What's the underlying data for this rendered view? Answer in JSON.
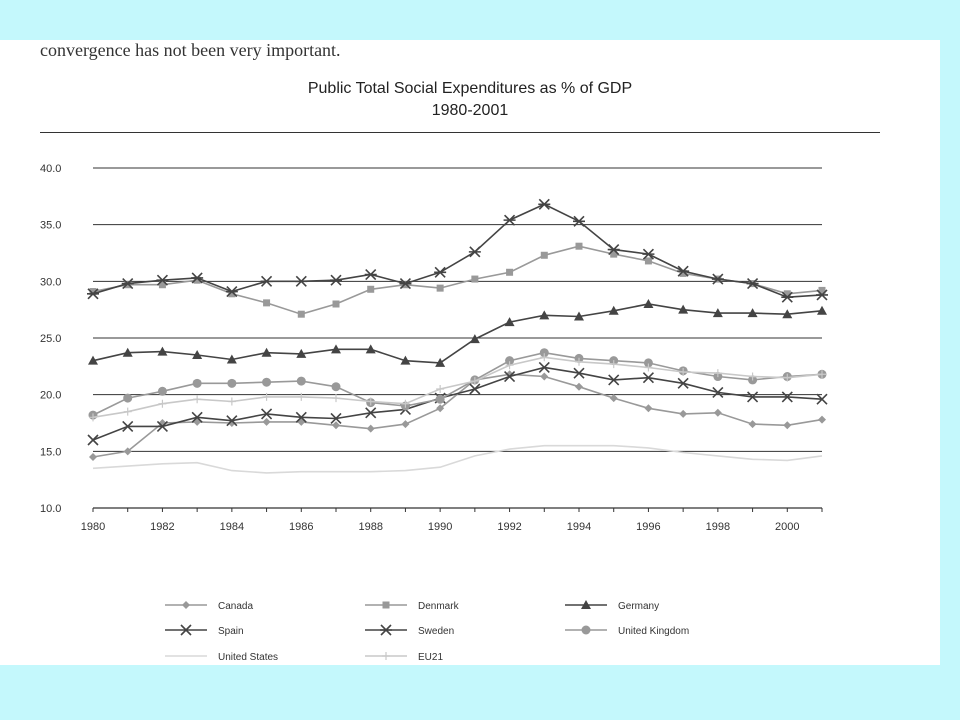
{
  "slide": {
    "caption": "convergence has not been very important.",
    "title_line1": "Public Total Social Expenditures as % of GDP",
    "title_line2": "1980-2001"
  },
  "chart_data": {
    "type": "line",
    "title": "Public Total Social Expenditures as % of GDP 1980-2001",
    "xlabel": "",
    "ylabel": "",
    "x": [
      1980,
      1981,
      1982,
      1983,
      1984,
      1985,
      1986,
      1987,
      1988,
      1989,
      1990,
      1991,
      1992,
      1993,
      1994,
      1995,
      1996,
      1997,
      1998,
      1999,
      2000,
      2001
    ],
    "xticks": [
      "1980",
      "1982",
      "1984",
      "1986",
      "1988",
      "1990",
      "1992",
      "1994",
      "1996",
      "1998",
      "2000"
    ],
    "yticks": [
      "10.0",
      "15.0",
      "20.0",
      "25.0",
      "30.0",
      "35.0",
      "40.0"
    ],
    "ylim": [
      10,
      40
    ],
    "grid": "horizontal",
    "legend_position": "bottom",
    "series": [
      {
        "name": "Canada",
        "color": "#999999",
        "marker": "diamond",
        "values": [
          14.5,
          15.0,
          17.5,
          17.6,
          17.5,
          17.6,
          17.6,
          17.3,
          17.0,
          17.4,
          18.8,
          21.3,
          21.8,
          21.6,
          20.7,
          19.7,
          18.8,
          18.3,
          18.4,
          17.4,
          17.3,
          17.8
        ]
      },
      {
        "name": "Denmark",
        "color": "#999999",
        "marker": "square",
        "values": [
          29.1,
          29.7,
          29.7,
          30.1,
          28.9,
          28.1,
          27.1,
          28.0,
          29.3,
          29.7,
          29.4,
          30.2,
          30.8,
          32.3,
          33.1,
          32.4,
          31.8,
          30.7,
          30.2,
          29.8,
          28.9,
          29.2
        ]
      },
      {
        "name": "Germany",
        "color": "#444444",
        "marker": "triangle",
        "values": [
          23.0,
          23.7,
          23.8,
          23.5,
          23.1,
          23.7,
          23.6,
          24.0,
          24.0,
          23.0,
          22.8,
          24.9,
          26.4,
          27.0,
          26.9,
          27.4,
          28.0,
          27.5,
          27.2,
          27.2,
          27.1,
          27.4
        ]
      },
      {
        "name": "Spain",
        "color": "#444444",
        "marker": "x",
        "values": [
          16.0,
          17.2,
          17.2,
          18.0,
          17.7,
          18.3,
          18.0,
          17.9,
          18.4,
          18.7,
          19.7,
          20.5,
          21.6,
          22.4,
          21.9,
          21.3,
          21.5,
          21.0,
          20.2,
          19.8,
          19.8,
          19.6
        ]
      },
      {
        "name": "Sweden",
        "color": "#444444",
        "marker": "star",
        "values": [
          28.9,
          29.8,
          30.1,
          30.3,
          29.1,
          30.0,
          30.0,
          30.1,
          30.6,
          29.8,
          30.8,
          32.6,
          35.4,
          36.8,
          35.3,
          32.8,
          32.4,
          30.9,
          30.2,
          29.8,
          28.6,
          28.8
        ]
      },
      {
        "name": "United Kingdom",
        "color": "#999999",
        "marker": "circle",
        "values": [
          18.2,
          19.7,
          20.3,
          21.0,
          21.0,
          21.1,
          21.2,
          20.7,
          19.3,
          19.0,
          19.6,
          21.3,
          23.0,
          23.7,
          23.2,
          23.0,
          22.8,
          22.1,
          21.6,
          21.3,
          21.6,
          21.8
        ]
      },
      {
        "name": "United States",
        "color": "#d9d9d9",
        "marker": "none",
        "values": [
          13.5,
          13.7,
          13.9,
          14.0,
          13.3,
          13.1,
          13.2,
          13.2,
          13.2,
          13.3,
          13.6,
          14.6,
          15.2,
          15.5,
          15.5,
          15.5,
          15.3,
          14.9,
          14.6,
          14.3,
          14.2,
          14.6
        ]
      },
      {
        "name": "EU21",
        "color": "#c8c8c8",
        "marker": "plus",
        "values": [
          18.0,
          18.5,
          19.2,
          19.6,
          19.4,
          19.8,
          19.8,
          19.7,
          19.4,
          19.2,
          20.5,
          21.2,
          22.6,
          23.3,
          22.9,
          22.7,
          22.4,
          22.0,
          21.9,
          21.6,
          21.5,
          21.8
        ]
      }
    ]
  }
}
